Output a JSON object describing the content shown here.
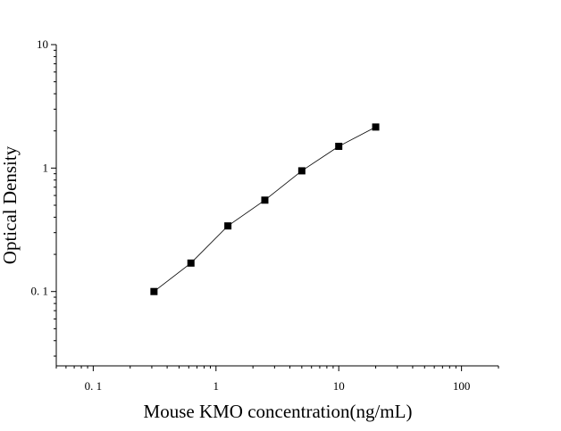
{
  "chart_data": {
    "type": "scatter",
    "title": "",
    "xlabel": "Mouse KMO concentration(ng/mL)",
    "ylabel": "Optical Density",
    "x_scale": "log",
    "y_scale": "log",
    "xlim": [
      0.05,
      200
    ],
    "ylim": [
      0.025,
      10
    ],
    "x_ticks": [
      {
        "value": 0.1,
        "label": "0. 1"
      },
      {
        "value": 1,
        "label": "1"
      },
      {
        "value": 10,
        "label": "10"
      },
      {
        "value": 100,
        "label": "100"
      }
    ],
    "y_ticks": [
      {
        "value": 0.1,
        "label": "0. 1"
      },
      {
        "value": 1,
        "label": "1"
      },
      {
        "value": 10,
        "label": "10"
      }
    ],
    "grid": false,
    "legend": "none",
    "series": [
      {
        "x": [
          0.3125,
          0.625,
          1.25,
          2.5,
          5,
          10,
          20
        ],
        "y": [
          0.1,
          0.17,
          0.34,
          0.55,
          0.95,
          1.5,
          2.15
        ],
        "marker": "square",
        "color": "#000000",
        "fit_curve": true
      }
    ]
  }
}
